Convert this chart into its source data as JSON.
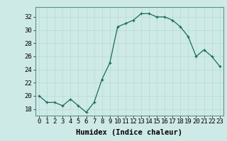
{
  "x": [
    0,
    1,
    2,
    3,
    4,
    5,
    6,
    7,
    8,
    9,
    10,
    11,
    12,
    13,
    14,
    15,
    16,
    17,
    18,
    19,
    20,
    21,
    22,
    23
  ],
  "y": [
    20.0,
    19.0,
    19.0,
    18.5,
    19.5,
    18.5,
    17.5,
    19.0,
    22.5,
    25.0,
    30.5,
    31.0,
    31.5,
    32.5,
    32.5,
    32.0,
    32.0,
    31.5,
    30.5,
    29.0,
    26.0,
    27.0,
    26.0,
    24.5
  ],
  "line_color": "#1a6b5a",
  "marker": "+",
  "marker_size": 3,
  "background_color": "#ceeae7",
  "grid_color": "#b8d8d4",
  "xlabel": "Humidex (Indice chaleur)",
  "xlim": [
    -0.5,
    23.5
  ],
  "ylim": [
    17,
    33.5
  ],
  "yticks": [
    18,
    20,
    22,
    24,
    26,
    28,
    30,
    32
  ],
  "xticks": [
    0,
    1,
    2,
    3,
    4,
    5,
    6,
    7,
    8,
    9,
    10,
    11,
    12,
    13,
    14,
    15,
    16,
    17,
    18,
    19,
    20,
    21,
    22,
    23
  ],
  "tick_fontsize": 6.5,
  "xlabel_fontsize": 7.5
}
